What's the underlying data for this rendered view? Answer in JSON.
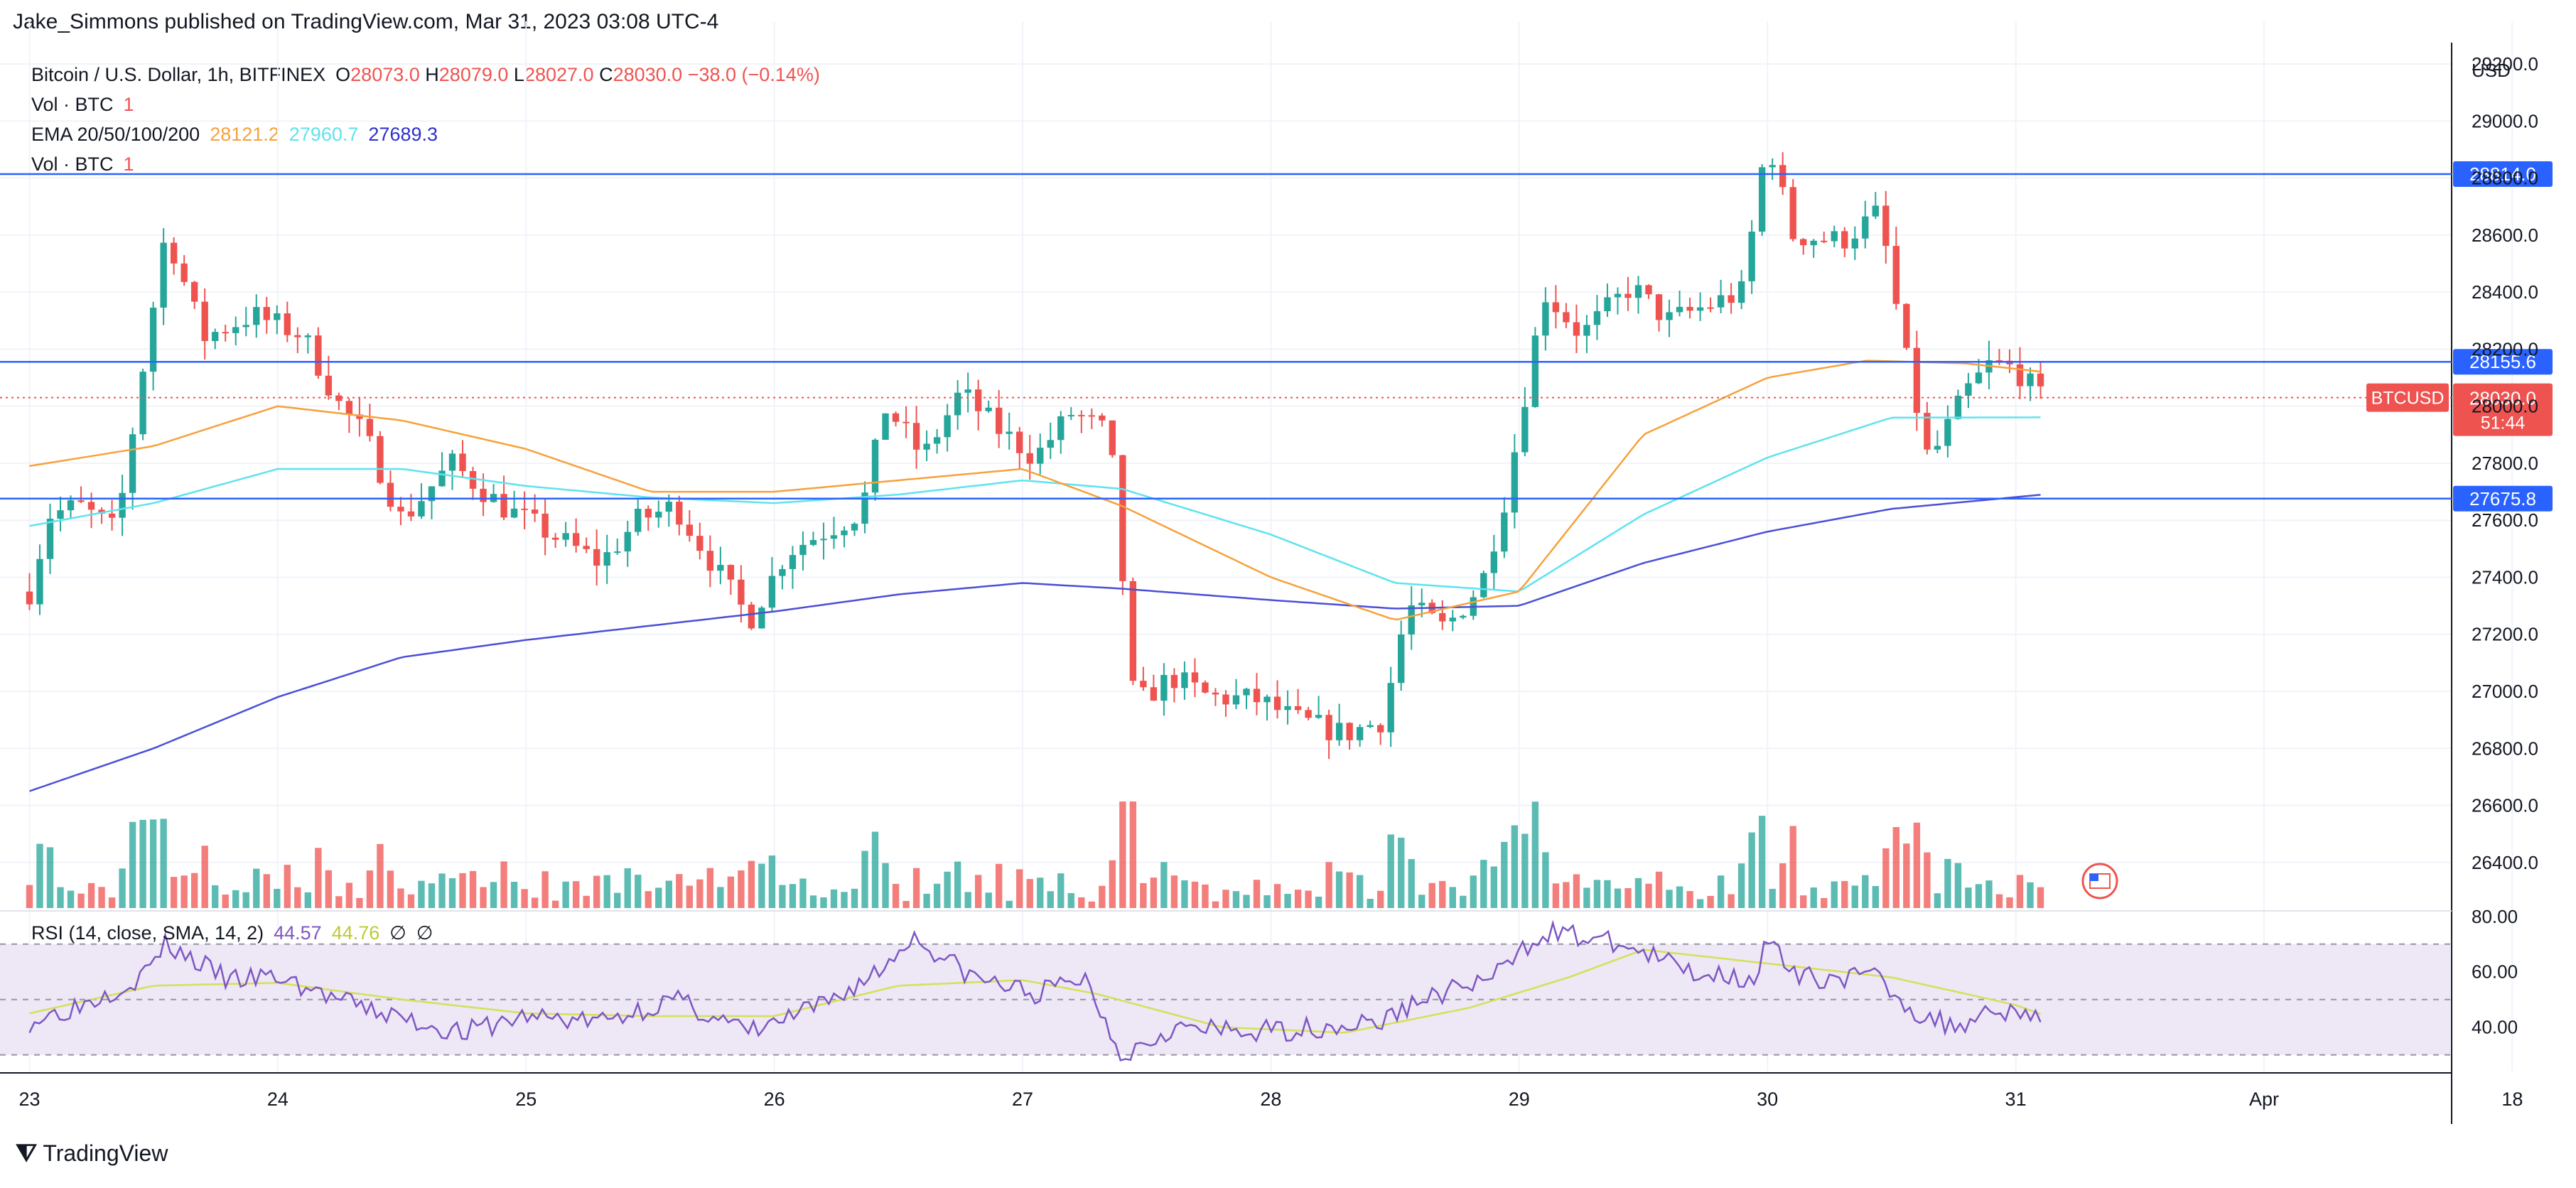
{
  "header": {
    "publisher": "Jake_Simmons published on TradingView.com, Mar 31, 2023 03:08 UTC-4"
  },
  "legend": {
    "symbol": "Bitcoin / U.S. Dollar, 1h, BITFINEX",
    "ohlc": {
      "o_label": "O",
      "o": "28073.0",
      "h_label": "H",
      "h": "28079.0",
      "l_label": "L",
      "l": "28027.0",
      "c_label": "C",
      "c": "28030.0",
      "change": "−38.0 (−0.14%)"
    },
    "vol1": {
      "label": "Vol · BTC",
      "value": "1"
    },
    "ema": {
      "label": "EMA 20/50/100/200",
      "v20": "28121.2",
      "v50": "27960.7",
      "v100": "27689.3"
    },
    "vol2": {
      "label": "Vol · BTC",
      "value": "1"
    }
  },
  "rsi_legend": {
    "label": "RSI (14, close, SMA, 14, 2)",
    "rsi": "44.57",
    "sma": "44.76",
    "na1": "∅",
    "na2": "∅"
  },
  "footer": {
    "brand": "TradingView"
  },
  "colors": {
    "up": "#26a69a",
    "down": "#ef5350",
    "ema20": "#f7a13b",
    "ema50": "#5ee3ef",
    "ema100": "#4b4fd6",
    "hline": "#2962ff",
    "rsi": "#7e57c2",
    "rsi_sma": "#d4e157",
    "rsi_band": "#ede7f6"
  },
  "chart_data": {
    "type": "candlestick",
    "title": "Bitcoin / U.S. Dollar, 1h, BITFINEX",
    "currency": "USD",
    "price_axis": {
      "unit": "USD",
      "ticks": [
        26400,
        26600,
        26800,
        27000,
        27200,
        27400,
        27600,
        27800,
        28000,
        28200,
        28400,
        28600,
        28800,
        29000,
        29200
      ],
      "range": [
        26240,
        29250
      ]
    },
    "time_axis": {
      "ticks": [
        "23",
        "24",
        "25",
        "26",
        "27",
        "28",
        "29",
        "30",
        "31",
        "Apr",
        "18"
      ],
      "range_days": [
        -0.05,
        9.75
      ]
    },
    "horizontal_levels": [
      {
        "price": 28814.0,
        "label": "28814.0"
      },
      {
        "price": 28155.6,
        "label": "28155.6"
      },
      {
        "price": 27675.8,
        "label": "27675.8"
      }
    ],
    "last_price": {
      "symbol": "BTCUSD",
      "value": "28030.0",
      "countdown": "51:44"
    },
    "candles_keyframes_day_price": [
      [
        0.0,
        27350
      ],
      [
        0.08,
        27620
      ],
      [
        0.2,
        27650
      ],
      [
        0.35,
        27560
      ],
      [
        0.45,
        28100
      ],
      [
        0.55,
        28620
      ],
      [
        0.7,
        28240
      ],
      [
        0.9,
        28320
      ],
      [
        1.1,
        28250
      ],
      [
        1.25,
        28000
      ],
      [
        1.35,
        27900
      ],
      [
        1.5,
        27600
      ],
      [
        1.7,
        27800
      ],
      [
        1.9,
        27650
      ],
      [
        2.1,
        27550
      ],
      [
        2.3,
        27450
      ],
      [
        2.45,
        27600
      ],
      [
        2.6,
        27650
      ],
      [
        2.9,
        27250
      ],
      [
        3.05,
        27490
      ],
      [
        3.2,
        27560
      ],
      [
        3.35,
        27630
      ],
      [
        3.45,
        28000
      ],
      [
        3.6,
        27820
      ],
      [
        3.75,
        28050
      ],
      [
        3.9,
        27920
      ],
      [
        4.05,
        27820
      ],
      [
        4.2,
        27980
      ],
      [
        4.35,
        27900
      ],
      [
        4.45,
        26950
      ],
      [
        4.6,
        27050
      ],
      [
        4.75,
        26980
      ],
      [
        4.95,
        26970
      ],
      [
        5.1,
        26900
      ],
      [
        5.3,
        26850
      ],
      [
        5.45,
        26900
      ],
      [
        5.55,
        27300
      ],
      [
        5.7,
        27220
      ],
      [
        5.85,
        27380
      ],
      [
        5.95,
        27700
      ],
      [
        6.1,
        28400
      ],
      [
        6.25,
        28250
      ],
      [
        6.45,
        28420
      ],
      [
        6.6,
        28300
      ],
      [
        6.75,
        28350
      ],
      [
        6.9,
        28400
      ],
      [
        7.0,
        28950
      ],
      [
        7.1,
        28600
      ],
      [
        7.3,
        28580
      ],
      [
        7.45,
        28680
      ],
      [
        7.55,
        28200
      ],
      [
        7.65,
        27800
      ],
      [
        7.8,
        28050
      ],
      [
        7.9,
        28150
      ],
      [
        8.0,
        28130
      ],
      [
        8.1,
        28030
      ]
    ],
    "ema": {
      "ema20": [
        [
          0.0,
          27790
        ],
        [
          0.5,
          27860
        ],
        [
          1.0,
          28000
        ],
        [
          1.5,
          27950
        ],
        [
          2.0,
          27850
        ],
        [
          2.5,
          27700
        ],
        [
          3.0,
          27700
        ],
        [
          3.5,
          27740
        ],
        [
          4.0,
          27780
        ],
        [
          4.4,
          27650
        ],
        [
          5.0,
          27400
        ],
        [
          5.5,
          27250
        ],
        [
          6.0,
          27350
        ],
        [
          6.5,
          27900
        ],
        [
          7.0,
          28100
        ],
        [
          7.4,
          28160
        ],
        [
          7.8,
          28150
        ],
        [
          8.1,
          28121.2
        ]
      ],
      "ema50": [
        [
          0.0,
          27580
        ],
        [
          0.5,
          27660
        ],
        [
          1.0,
          27780
        ],
        [
          1.5,
          27780
        ],
        [
          2.0,
          27720
        ],
        [
          2.5,
          27680
        ],
        [
          3.0,
          27660
        ],
        [
          3.5,
          27690
        ],
        [
          4.0,
          27740
        ],
        [
          4.4,
          27710
        ],
        [
          5.0,
          27550
        ],
        [
          5.5,
          27380
        ],
        [
          6.0,
          27350
        ],
        [
          6.5,
          27620
        ],
        [
          7.0,
          27820
        ],
        [
          7.5,
          27960
        ],
        [
          8.1,
          27960.7
        ]
      ],
      "ema100": [
        [
          0.0,
          26650
        ],
        [
          0.5,
          26800
        ],
        [
          1.0,
          26980
        ],
        [
          1.5,
          27120
        ],
        [
          2.0,
          27180
        ],
        [
          2.5,
          27230
        ],
        [
          3.0,
          27280
        ],
        [
          3.5,
          27340
        ],
        [
          4.0,
          27380
        ],
        [
          4.4,
          27360
        ],
        [
          5.0,
          27320
        ],
        [
          5.5,
          27290
        ],
        [
          6.0,
          27300
        ],
        [
          6.5,
          27450
        ],
        [
          7.0,
          27560
        ],
        [
          7.5,
          27640
        ],
        [
          8.1,
          27689.3
        ]
      ]
    },
    "rsi_axis": {
      "ticks": [
        40.0,
        60.0,
        80.0
      ],
      "range": [
        24,
        82
      ],
      "bands": [
        30,
        70
      ]
    },
    "rsi_keyframes_day_value": [
      [
        0.0,
        42
      ],
      [
        0.2,
        48
      ],
      [
        0.45,
        58
      ],
      [
        0.55,
        70
      ],
      [
        0.8,
        57
      ],
      [
        1.0,
        58
      ],
      [
        1.3,
        48
      ],
      [
        1.55,
        42
      ],
      [
        1.75,
        38
      ],
      [
        2.0,
        44
      ],
      [
        2.3,
        42
      ],
      [
        2.6,
        50
      ],
      [
        2.9,
        38
      ],
      [
        3.2,
        48
      ],
      [
        3.45,
        62
      ],
      [
        3.55,
        73
      ],
      [
        3.8,
        58
      ],
      [
        4.05,
        52
      ],
      [
        4.25,
        58
      ],
      [
        4.4,
        30
      ],
      [
        4.6,
        40
      ],
      [
        4.9,
        38
      ],
      [
        5.2,
        40
      ],
      [
        5.45,
        42
      ],
      [
        5.6,
        50
      ],
      [
        5.9,
        58
      ],
      [
        6.1,
        75
      ],
      [
        6.4,
        70
      ],
      [
        6.7,
        60
      ],
      [
        6.95,
        58
      ],
      [
        7.0,
        72
      ],
      [
        7.1,
        58
      ],
      [
        7.45,
        58
      ],
      [
        7.6,
        45
      ],
      [
        7.75,
        40
      ],
      [
        7.9,
        47
      ],
      [
        8.1,
        44.57
      ]
    ],
    "rsi_sma_keyframes_day_value": [
      [
        0.0,
        45
      ],
      [
        0.5,
        55
      ],
      [
        1.0,
        56
      ],
      [
        1.5,
        50
      ],
      [
        2.0,
        45
      ],
      [
        2.5,
        44
      ],
      [
        3.0,
        44
      ],
      [
        3.5,
        55
      ],
      [
        4.0,
        57
      ],
      [
        4.3,
        52
      ],
      [
        4.8,
        40
      ],
      [
        5.3,
        38
      ],
      [
        5.8,
        47
      ],
      [
        6.2,
        58
      ],
      [
        6.5,
        68
      ],
      [
        7.0,
        63
      ],
      [
        7.5,
        58
      ],
      [
        8.0,
        48
      ],
      [
        8.1,
        44.76
      ]
    ]
  }
}
